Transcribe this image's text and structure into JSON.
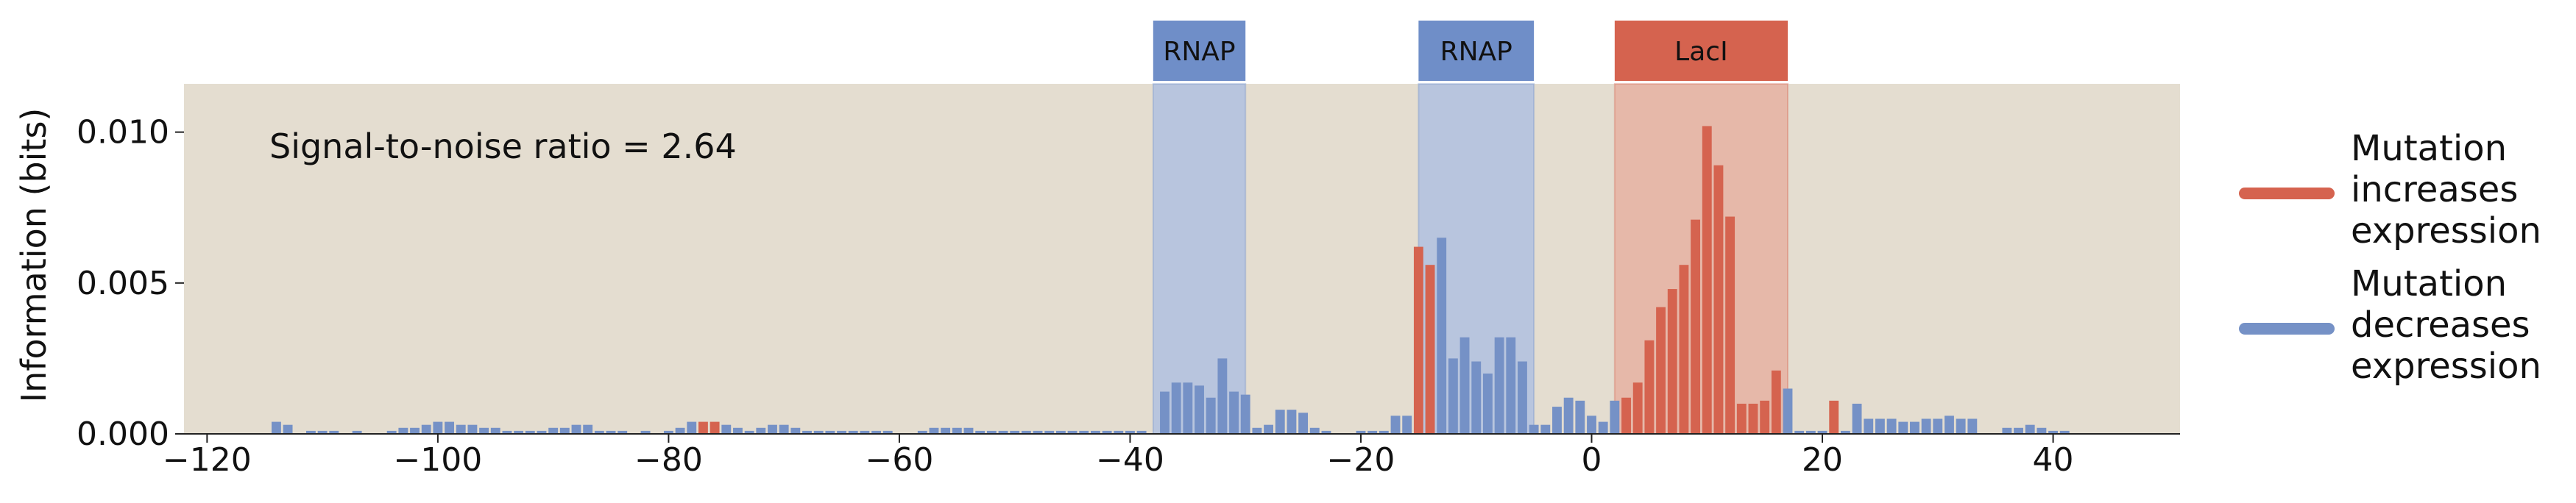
{
  "chart_data": {
    "type": "bar",
    "title": "",
    "xlabel": "",
    "ylabel": "Information (bits)",
    "xlim": [
      -122,
      51
    ],
    "ylim": [
      0,
      0.0116
    ],
    "x_ticks": [
      -120,
      -100,
      -80,
      -60,
      -40,
      -20,
      0,
      20,
      40
    ],
    "x_tick_labels": [
      "−120",
      "−100",
      "−80",
      "−60",
      "−40",
      "−20",
      "0",
      "20",
      "40"
    ],
    "y_ticks": [
      0,
      0.005,
      0.01
    ],
    "y_tick_labels": [
      "0.000",
      "0.005",
      "0.010"
    ],
    "grid": false,
    "annotation": "Signal-to-noise ratio = 2.64",
    "colors": {
      "plot_background": "#e4ddd0",
      "increases": "#d5634f",
      "decreases": "#7591c6"
    },
    "regions": [
      {
        "label": "RNAP",
        "start": -38,
        "end": -30,
        "color": "#6f8ec8",
        "fill": "#b8c5de"
      },
      {
        "label": "RNAP",
        "start": -15,
        "end": -5,
        "color": "#6f8ec8",
        "fill": "#b8c5de"
      },
      {
        "label": "LacI",
        "start": 2,
        "end": 17,
        "color": "#d5634f",
        "fill": "#e6b8a9"
      }
    ],
    "legend": {
      "placement": "right",
      "entries": [
        {
          "lines": [
            "Mutation",
            "increases",
            "expression"
          ],
          "color": "#d5634f"
        },
        {
          "lines": [
            "Mutation",
            "decreases",
            "expression"
          ],
          "color": "#7591c6"
        }
      ]
    },
    "series": [
      {
        "name": "Mutation increases expression",
        "x": [
          -77,
          -76,
          -15,
          -14,
          3,
          4,
          5,
          6,
          7,
          8,
          9,
          10,
          11,
          12,
          13,
          14,
          15,
          16,
          21
        ],
        "values": [
          0.0004,
          0.0004,
          0.0062,
          0.0056,
          0.0012,
          0.0017,
          0.0031,
          0.0042,
          0.0048,
          0.0056,
          0.0071,
          0.0102,
          0.0089,
          0.0072,
          0.001,
          0.001,
          0.0011,
          0.0021,
          0.0011
        ]
      },
      {
        "name": "Mutation decreases expression",
        "x": [
          -114,
          -113,
          -111,
          -110,
          -109,
          -107,
          -104,
          -103,
          -102,
          -101,
          -100,
          -99,
          -98,
          -97,
          -96,
          -95,
          -94,
          -93,
          -92,
          -91,
          -90,
          -89,
          -88,
          -87,
          -86,
          -85,
          -84,
          -82,
          -80,
          -79,
          -78,
          -75,
          -74,
          -73,
          -72,
          -71,
          -70,
          -69,
          -68,
          -67,
          -66,
          -65,
          -64,
          -63,
          -62,
          -61,
          -58,
          -57,
          -56,
          -55,
          -54,
          -53,
          -52,
          -51,
          -50,
          -49,
          -48,
          -47,
          -46,
          -45,
          -44,
          -43,
          -42,
          -41,
          -40,
          -39,
          -37,
          -36,
          -35,
          -34,
          -33,
          -32,
          -31,
          -30,
          -29,
          -28,
          -27,
          -26,
          -25,
          -24,
          -23,
          -20,
          -19,
          -18,
          -17,
          -16,
          -13,
          -12,
          -11,
          -10,
          -9,
          -8,
          -7,
          -6,
          -5,
          -4,
          -3,
          -2,
          -1,
          0,
          1,
          2,
          17,
          18,
          19,
          20,
          22,
          23,
          24,
          25,
          26,
          27,
          28,
          29,
          30,
          31,
          32,
          33,
          36,
          37,
          38,
          39,
          40,
          41
        ],
        "values": [
          0.0004,
          0.0003,
          0.0001,
          0.0001,
          0.0001,
          0.0001,
          0.0001,
          0.0002,
          0.0002,
          0.0003,
          0.0004,
          0.0004,
          0.0003,
          0.0003,
          0.0002,
          0.0002,
          0.0001,
          0.0001,
          0.0001,
          0.0001,
          0.0002,
          0.0002,
          0.0003,
          0.0003,
          0.0001,
          0.0001,
          0.0001,
          0.0001,
          0.0001,
          0.0002,
          0.0004,
          0.0003,
          0.0002,
          0.0001,
          0.0002,
          0.0003,
          0.0003,
          0.0002,
          0.0001,
          0.0001,
          0.0001,
          0.0001,
          0.0001,
          0.0001,
          0.0001,
          0.0001,
          0.0001,
          0.0002,
          0.0002,
          0.0002,
          0.0002,
          0.0001,
          0.0001,
          0.0001,
          0.0001,
          0.0001,
          0.0001,
          0.0001,
          0.0001,
          0.0001,
          0.0001,
          0.0001,
          0.0001,
          0.0001,
          0.0001,
          0.0001,
          0.0014,
          0.0017,
          0.0017,
          0.0016,
          0.0012,
          0.0025,
          0.0014,
          0.0013,
          0.0002,
          0.0003,
          0.0008,
          0.0008,
          0.0007,
          0.0002,
          0.0001,
          0.0001,
          0.0001,
          0.0001,
          0.0006,
          0.0006,
          0.0065,
          0.0025,
          0.0032,
          0.0024,
          0.002,
          0.0032,
          0.0032,
          0.0024,
          0.0003,
          0.0003,
          0.0009,
          0.0012,
          0.0011,
          0.0006,
          0.0004,
          0.0011,
          0.0015,
          0.0001,
          0.0001,
          0.0001,
          0.0001,
          0.001,
          0.0005,
          0.0005,
          0.0005,
          0.0004,
          0.0004,
          0.0005,
          0.0005,
          0.0006,
          0.0005,
          0.0005,
          0.0002,
          0.0002,
          0.0003,
          0.0002,
          0.0001,
          0.0001
        ]
      }
    ]
  }
}
